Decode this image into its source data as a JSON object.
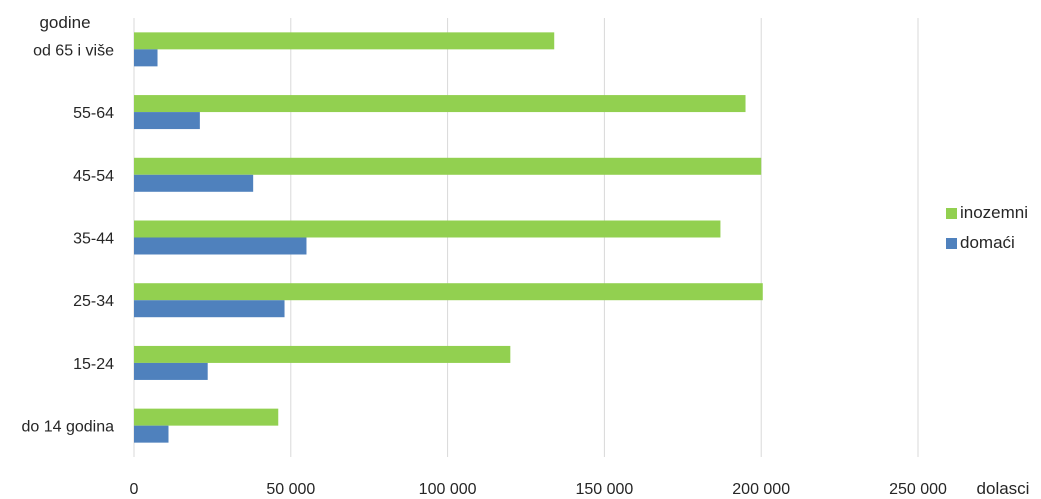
{
  "chart_data": {
    "type": "bar",
    "orientation": "horizontal",
    "categories": [
      "do 14 godina",
      "15-24",
      "25-34",
      "35-44",
      "45-54",
      "55-64",
      "od 65 i više"
    ],
    "series": [
      {
        "name": "inozemni",
        "color": "#92d050",
        "values": [
          46000,
          120000,
          200500,
          187000,
          200000,
          195000,
          134000
        ]
      },
      {
        "name": "domaći",
        "color": "#4f81bd",
        "values": [
          11000,
          23500,
          48000,
          55000,
          38000,
          21000,
          7500
        ]
      }
    ],
    "xlim": [
      0,
      250000
    ],
    "xticks": [
      0,
      50000,
      100000,
      150000,
      200000,
      250000
    ],
    "xtick_labels": [
      "0",
      "50 000",
      "100 000",
      "150 000",
      "200 000",
      "250 000"
    ],
    "xlabel": "dolasci",
    "ylabel": "godine",
    "grid": "vertical",
    "legend_position": "right"
  }
}
